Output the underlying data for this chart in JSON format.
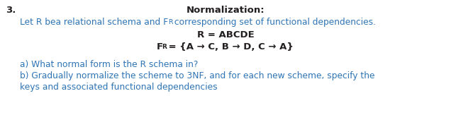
{
  "bg_color": "#ffffff",
  "number": "3.",
  "title": "Normalization:",
  "line1_part1": "Let R bea relational schema and F",
  "line1_sub": "R",
  "line1_part2": " corresponding set of functional dependencies.",
  "line2": "R = ABCDE",
  "line3_F": "F",
  "line3_sub": "R",
  "line3_rest": " = {A → C, B → D, C → A}",
  "line_a": "a) What normal form is the R schema in?",
  "line_b1": "b) Gradually normalize the scheme to 3NF, and for each new scheme, specify the",
  "line_b2": "keys and associated functional dependencies",
  "font_color": "#231f20",
  "blue_color": "#2e74b5",
  "title_fontsize": 9.5,
  "body_fontsize": 8.8,
  "num_fontsize": 9.5
}
